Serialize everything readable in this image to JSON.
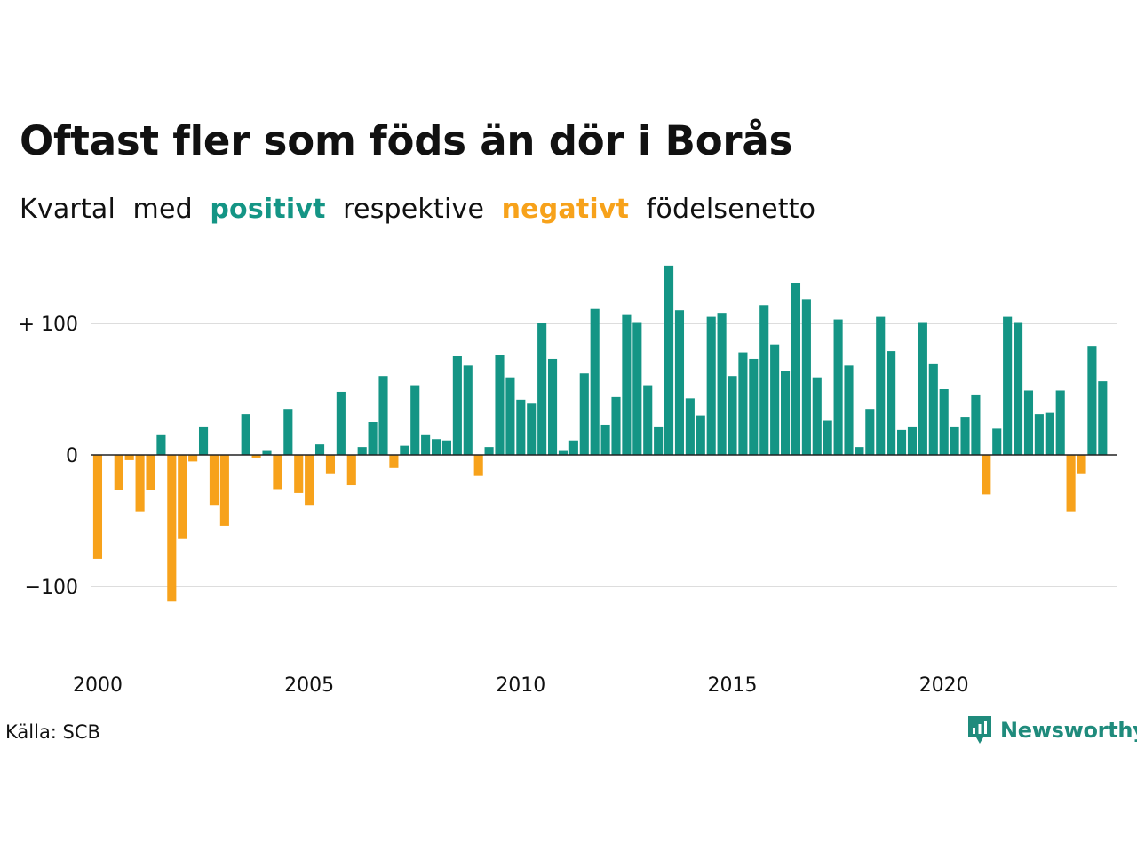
{
  "title": "Oftast fler som föds än dör i Borås",
  "subtitle": {
    "part1": "Kvartal",
    "part2": "med",
    "positive_word": "positivt",
    "part3": "respektive",
    "negative_word": "negativt",
    "part4": "födelsenetto"
  },
  "source": "Källa: SCB",
  "brand": {
    "name": "Newsworthy",
    "icon": "newsworthy-logo-icon"
  },
  "colors": {
    "positive": "#149585",
    "negative": "#f7a21b",
    "grid": "#dddddd",
    "zero_line": "#222222",
    "brand": "#1f8b7c"
  },
  "chart_data": {
    "type": "bar",
    "title": "Oftast fler som föds än dör i Borås",
    "subtitle": "Kvartal med positivt respektive negativt födelsenetto",
    "xlabel": "",
    "ylabel": "",
    "x_start": 2000.0,
    "x_step": 0.25,
    "xlim": [
      1999.875,
      2024.1
    ],
    "ylim": [
      -155,
      145
    ],
    "y_ticks": [
      {
        "value": 100,
        "label": "+ 100"
      },
      {
        "value": 0,
        "label": "0"
      },
      {
        "value": -100,
        "label": "−100"
      }
    ],
    "x_ticks": [
      {
        "value": 2000,
        "label": "2000"
      },
      {
        "value": 2005,
        "label": "2005"
      },
      {
        "value": 2010,
        "label": "2010"
      },
      {
        "value": 2015,
        "label": "2015"
      },
      {
        "value": 2020,
        "label": "2020"
      }
    ],
    "grid": true,
    "values": [
      -79,
      0,
      -27,
      -4,
      -43,
      -27,
      15,
      -111,
      -64,
      -5,
      21,
      -38,
      -54,
      0,
      31,
      -2,
      3,
      -26,
      35,
      -29,
      -38,
      8,
      -14,
      48,
      -23,
      6,
      25,
      60,
      -10,
      7,
      53,
      15,
      12,
      11,
      75,
      68,
      -16,
      6,
      76,
      59,
      42,
      39,
      100,
      73,
      3,
      11,
      62,
      111,
      23,
      44,
      107,
      101,
      53,
      21,
      144,
      110,
      43,
      30,
      105,
      108,
      60,
      78,
      73,
      114,
      84,
      64,
      131,
      118,
      59,
      26,
      103,
      68,
      6,
      35,
      105,
      79,
      19,
      21,
      101,
      69,
      50,
      21,
      29,
      46,
      -30,
      20,
      105,
      101,
      49,
      31,
      32,
      49,
      -43,
      -14,
      83,
      56
    ]
  }
}
